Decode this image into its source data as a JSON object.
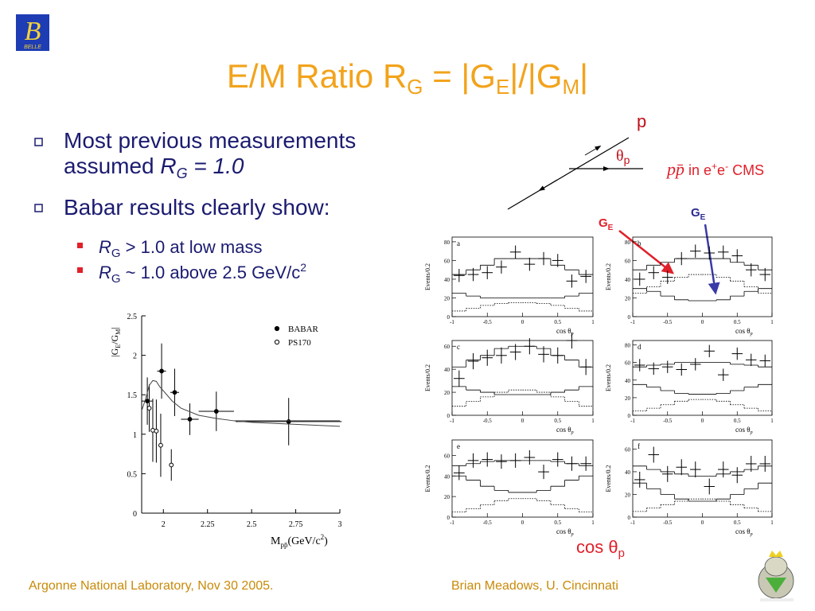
{
  "logo": "BELLE",
  "title": {
    "a": "E/M Ratio R",
    "b": "G",
    "c": " = |G",
    "d": "E",
    "e": "|/|G",
    "f": "M",
    "g": "|"
  },
  "bullets": {
    "b1a": "Most previous measurements",
    "b1b": "assumed ",
    "b1c": "R",
    "b1d": "G",
    "b1e": " = 1.0",
    "b2": "Babar results clearly show:",
    "s1a": "R",
    "s1b": "G",
    "s1c": " >  1.0 at low mass",
    "s2a": "R",
    "s2b": "G",
    "s2c": " ~ 1.0 above 2.5 GeV/c",
    "s2d": "2"
  },
  "diagram": {
    "p": "p",
    "theta": "θ",
    "theta_sub": "p",
    "ppbar": "pp̄",
    "cms_a": " in e",
    "cms_b": "+",
    "cms_c": "e",
    "cms_d": "-",
    "cms_e": " CMS",
    "ge_red": "G",
    "ge_red_sub": "E",
    "ge_blue": "G",
    "ge_blue_sub": "E",
    "cos": "cos θ",
    "cos_sub": "p"
  },
  "footer": {
    "left": "Argonne National Laboratory, Nov 30 2005.",
    "right": "Brian Meadows, U. Cincinnati"
  },
  "chart_data": [
    {
      "type": "scatter",
      "ylabel_a": "|G",
      "ylabel_b": "E",
      "ylabel_c": "/G",
      "ylabel_d": "M",
      "ylabel_e": "|",
      "xlabel_a": "M",
      "xlabel_b": "pp̄",
      "xlabel_c": "(GeV/c",
      "xlabel_d": "2",
      "xlabel_e": ")",
      "xlim": [
        1.877,
        3
      ],
      "xticks": [
        2,
        2.25,
        2.5,
        2.75,
        3
      ],
      "ylim": [
        0,
        2.5
      ],
      "yticks": [
        0,
        0.5,
        1,
        1.5,
        2,
        2.5
      ],
      "series": [
        {
          "name": "BABAR",
          "marker": "filled",
          "x": [
            1.909,
            1.99,
            2.064,
            2.15,
            2.3,
            2.71
          ],
          "values": [
            1.42,
            1.8,
            1.53,
            1.19,
            1.29,
            1.16
          ],
          "errors": [
            0.3,
            0.35,
            0.3,
            0.2,
            0.25,
            0.3
          ],
          "xerrors": [
            0.03,
            0.025,
            0.025,
            0.05,
            0.1,
            0.3
          ]
        },
        {
          "name": "PS170",
          "marker": "open",
          "x": [
            1.92,
            1.94,
            1.96,
            1.985,
            2.045
          ],
          "values": [
            1.33,
            1.05,
            1.04,
            0.86,
            0.61
          ],
          "errors": [
            0.3,
            0.4,
            0.4,
            0.4,
            0.2
          ]
        },
        {
          "style": "line",
          "x": [
            1.877,
            1.9,
            1.92,
            1.94,
            1.96,
            1.98,
            2.0,
            2.05,
            2.1,
            2.2,
            2.3,
            2.4,
            2.5,
            2.6,
            2.8,
            3.0
          ],
          "values": [
            1.3,
            1.45,
            1.62,
            1.68,
            1.67,
            1.6,
            1.55,
            1.42,
            1.33,
            1.24,
            1.2,
            1.17,
            1.15,
            1.14,
            1.12,
            1.1
          ]
        },
        {
          "style": "line",
          "x": [
            2.4,
            3.0
          ],
          "values": [
            1.17,
            1.17
          ]
        }
      ]
    },
    {
      "type": "histogram",
      "label": "a",
      "xlabel": "cos θ",
      "xlabel_sub": "p",
      "ylabel": "Events/0.2",
      "bins": [
        -1,
        -0.8,
        -0.6,
        -0.4,
        -0.2,
        0,
        0.2,
        0.4,
        0.6,
        0.8,
        1
      ],
      "xlim": [
        -1,
        1
      ],
      "xticks": [
        -1,
        -0.5,
        0,
        0.5,
        1
      ],
      "ylim": [
        0,
        85
      ],
      "yticks": [
        0,
        20,
        40,
        60,
        80
      ],
      "series": [
        {
          "style": "points",
          "values": [
            44,
            45,
            47,
            53,
            69,
            56,
            62,
            60,
            38,
            43
          ],
          "errors": [
            7,
            7,
            7,
            7,
            7,
            7,
            7,
            7,
            7,
            7
          ]
        },
        {
          "style": "solid",
          "values": [
            45,
            50,
            55,
            62,
            62,
            62,
            62,
            55,
            50,
            45
          ]
        },
        {
          "style": "solid",
          "values": [
            25,
            22,
            20,
            20,
            20,
            20,
            20,
            20,
            22,
            25
          ]
        },
        {
          "style": "dotted",
          "values": [
            6,
            9,
            12,
            14,
            15,
            15,
            14,
            12,
            9,
            6
          ]
        }
      ]
    },
    {
      "type": "histogram",
      "label": "b",
      "xlabel": "cos θ",
      "xlabel_sub": "p",
      "ylabel": "Events/0.2",
      "bins": [
        -1,
        -0.8,
        -0.6,
        -0.4,
        -0.2,
        0,
        0.2,
        0.4,
        0.6,
        0.8,
        1
      ],
      "xlim": [
        -1,
        1
      ],
      "xticks": [
        -1,
        -0.5,
        0,
        0.5,
        1
      ],
      "ylim": [
        0,
        85
      ],
      "yticks": [
        0,
        20,
        40,
        60,
        80
      ],
      "series": [
        {
          "style": "points",
          "values": [
            40,
            47,
            42,
            62,
            70,
            68,
            69,
            65,
            50,
            45
          ],
          "errors": [
            7,
            7,
            7,
            7,
            7,
            7,
            7,
            7,
            7,
            7
          ]
        },
        {
          "style": "solid",
          "values": [
            50,
            55,
            58,
            62,
            62,
            62,
            62,
            58,
            55,
            50
          ]
        },
        {
          "style": "solid",
          "values": [
            30,
            27,
            22,
            18,
            17,
            17,
            18,
            22,
            27,
            30
          ]
        },
        {
          "style": "dotted",
          "values": [
            25,
            32,
            38,
            42,
            45,
            45,
            42,
            38,
            32,
            25
          ]
        }
      ]
    },
    {
      "type": "histogram",
      "label": "c",
      "xlabel": "cos θ",
      "xlabel_sub": "p",
      "ylabel": "Events/0.2",
      "bins": [
        -1,
        -0.8,
        -0.6,
        -0.4,
        -0.2,
        0,
        0.2,
        0.4,
        0.6,
        0.8,
        1
      ],
      "xlim": [
        -1,
        1
      ],
      "xticks": [
        -1,
        -0.5,
        0,
        0.5,
        1
      ],
      "ylim": [
        0,
        65
      ],
      "yticks": [
        0,
        20,
        40,
        60
      ],
      "series": [
        {
          "style": "points",
          "values": [
            32,
            47,
            50,
            52,
            55,
            60,
            53,
            52,
            65,
            42
          ],
          "errors": [
            7,
            7,
            7,
            7,
            7,
            7,
            7,
            7,
            7,
            7
          ]
        },
        {
          "style": "solid",
          "values": [
            42,
            48,
            52,
            58,
            60,
            60,
            58,
            52,
            48,
            42
          ]
        },
        {
          "style": "solid",
          "values": [
            25,
            22,
            20,
            18,
            18,
            18,
            18,
            20,
            22,
            25
          ]
        },
        {
          "style": "dotted",
          "values": [
            8,
            12,
            16,
            20,
            22,
            22,
            20,
            16,
            12,
            8
          ]
        }
      ]
    },
    {
      "type": "histogram",
      "label": "d",
      "xlabel": "cos θ",
      "xlabel_sub": "p",
      "ylabel": "Events/0.2",
      "bins": [
        -1,
        -0.8,
        -0.6,
        -0.4,
        -0.2,
        0,
        0.2,
        0.4,
        0.6,
        0.8,
        1
      ],
      "xlim": [
        -1,
        1
      ],
      "xticks": [
        -1,
        -0.5,
        0,
        0.5,
        1
      ],
      "ylim": [
        0,
        85
      ],
      "yticks": [
        0,
        20,
        40,
        60,
        80
      ],
      "series": [
        {
          "style": "points",
          "values": [
            57,
            53,
            55,
            52,
            58,
            73,
            46,
            70,
            63,
            62
          ],
          "errors": [
            7,
            7,
            7,
            7,
            7,
            7,
            7,
            7,
            7,
            7
          ]
        },
        {
          "style": "solid",
          "values": [
            55,
            57,
            58,
            60,
            60,
            60,
            60,
            58,
            57,
            55
          ]
        },
        {
          "style": "solid",
          "values": [
            35,
            32,
            28,
            25,
            24,
            24,
            25,
            28,
            32,
            35
          ]
        },
        {
          "style": "dotted",
          "values": [
            5,
            8,
            12,
            16,
            18,
            18,
            16,
            12,
            8,
            5
          ]
        }
      ]
    },
    {
      "type": "histogram",
      "label": "e",
      "xlabel": "cos θ",
      "xlabel_sub": "p",
      "ylabel": "Events/0.2",
      "bins": [
        -1,
        -0.8,
        -0.6,
        -0.4,
        -0.2,
        0,
        0.2,
        0.4,
        0.6,
        0.8,
        1
      ],
      "xlim": [
        -1,
        1
      ],
      "xticks": [
        -1,
        -0.5,
        0,
        0.5,
        1
      ],
      "ylim": [
        0,
        75
      ],
      "yticks": [
        0,
        20,
        40,
        60
      ],
      "series": [
        {
          "style": "points",
          "values": [
            43,
            55,
            56,
            54,
            55,
            58,
            44,
            56,
            52,
            52
          ],
          "errors": [
            7,
            7,
            7,
            7,
            7,
            7,
            7,
            7,
            7,
            7
          ]
        },
        {
          "style": "solid",
          "values": [
            50,
            52,
            54,
            55,
            55,
            55,
            55,
            54,
            52,
            50
          ]
        },
        {
          "style": "solid",
          "values": [
            40,
            36,
            30,
            26,
            24,
            24,
            26,
            30,
            36,
            40
          ]
        },
        {
          "style": "dotted",
          "values": [
            5,
            8,
            12,
            16,
            18,
            18,
            16,
            12,
            8,
            5
          ]
        }
      ]
    },
    {
      "type": "histogram",
      "label": "f",
      "xlabel": "cos θ",
      "xlabel_sub": "p",
      "ylabel": "Events/0.2",
      "bins": [
        -1,
        -0.8,
        -0.6,
        -0.4,
        -0.2,
        0,
        0.2,
        0.4,
        0.6,
        0.8,
        1
      ],
      "xlim": [
        -1,
        1
      ],
      "xticks": [
        -1,
        -0.5,
        0,
        0.5,
        1
      ],
      "ylim": [
        0,
        68
      ],
      "yticks": [
        0,
        20,
        40,
        60
      ],
      "series": [
        {
          "style": "points",
          "values": [
            33,
            55,
            38,
            44,
            42,
            27,
            42,
            37,
            47,
            47
          ],
          "errors": [
            7,
            7,
            7,
            7,
            7,
            7,
            7,
            7,
            7,
            7
          ]
        },
        {
          "style": "solid",
          "values": [
            45,
            42,
            40,
            38,
            36,
            36,
            38,
            40,
            42,
            45
          ]
        },
        {
          "style": "solid",
          "values": [
            30,
            25,
            20,
            16,
            14,
            14,
            16,
            20,
            25,
            30
          ]
        },
        {
          "style": "dotted",
          "values": [
            5,
            8,
            11,
            14,
            16,
            16,
            14,
            11,
            8,
            5
          ]
        }
      ]
    }
  ]
}
